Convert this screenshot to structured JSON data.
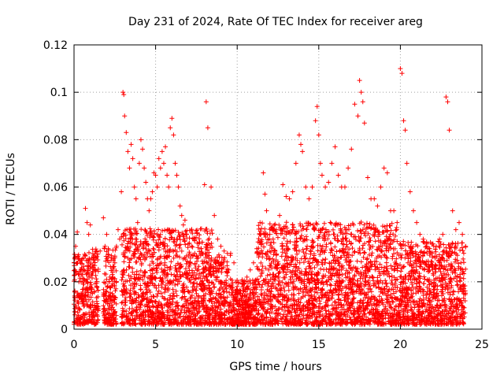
{
  "chart_data": {
    "type": "scatter",
    "title": "Day 231 of 2024, Rate Of TEC Index for receiver areg",
    "xlabel": "GPS time / hours",
    "ylabel": "ROTI / TECUs",
    "xlim": [
      0,
      25
    ],
    "ylim": [
      0,
      0.12
    ],
    "xticks": [
      0,
      5,
      10,
      15,
      20,
      25
    ],
    "yticks": [
      0,
      0.02,
      0.04,
      0.06,
      0.08,
      0.1,
      0.12
    ],
    "xtick_labels": [
      "0",
      "5",
      "10",
      "15",
      "20",
      "25"
    ],
    "ytick_labels": [
      "0",
      "0.02",
      "0.04",
      "0.06",
      "0.08",
      "0.1",
      "0.12"
    ],
    "grid": true,
    "marker": "plus",
    "color": "#ff0000",
    "series": [
      {
        "values_note_free": true,
        "x": [
          0.1,
          0.2,
          0.3,
          0.4,
          0.5,
          0.6,
          0.7,
          0.8,
          0.9,
          1.0,
          1.1,
          1.2,
          1.3,
          1.4,
          1.6,
          1.8,
          1.9,
          2.0,
          2.1,
          2.2,
          2.3,
          2.4,
          2.5,
          2.6,
          2.7,
          2.8,
          2.9,
          3.0,
          3.05,
          3.1,
          3.2,
          3.3,
          3.4,
          3.5,
          3.6,
          3.7,
          3.8,
          3.9,
          4.0,
          4.1,
          4.2,
          4.3,
          4.4,
          4.5,
          4.6,
          4.7,
          4.8,
          4.9,
          5.0,
          5.1,
          5.2,
          5.3,
          5.4,
          5.5,
          5.6,
          5.7,
          5.8,
          5.9,
          6.0,
          6.1,
          6.2,
          6.3,
          6.4,
          6.5,
          6.6,
          6.7,
          6.8,
          6.9,
          7.0,
          7.2,
          7.4,
          7.6,
          7.8,
          8.0,
          8.1,
          8.2,
          8.4,
          8.6,
          8.8,
          9.0,
          9.2,
          9.4,
          9.6,
          9.8,
          10.0,
          10.2,
          10.4,
          10.6,
          10.8,
          11.0,
          11.2,
          11.4,
          11.6,
          11.7,
          11.8,
          12.0,
          12.2,
          12.4,
          12.6,
          12.8,
          13.0,
          13.2,
          13.4,
          13.6,
          13.8,
          13.9,
          14.0,
          14.2,
          14.4,
          14.6,
          14.8,
          14.9,
          15.0,
          15.1,
          15.2,
          15.4,
          15.6,
          15.8,
          16.0,
          16.2,
          16.4,
          16.6,
          16.8,
          17.0,
          17.2,
          17.4,
          17.5,
          17.6,
          17.7,
          17.8,
          18.0,
          18.2,
          18.4,
          18.6,
          18.8,
          19.0,
          19.2,
          19.4,
          19.6,
          19.8,
          20.0,
          20.1,
          20.2,
          20.3,
          20.4,
          20.6,
          20.8,
          21.0,
          21.2,
          21.4,
          21.6,
          21.8,
          22.0,
          22.2,
          22.4,
          22.6,
          22.8,
          22.9,
          23.0,
          23.2,
          23.4,
          23.6,
          23.8,
          24.0
        ],
        "y": [
          0.035,
          0.041,
          0.02,
          0.028,
          0.015,
          0.03,
          0.051,
          0.045,
          0.04,
          0.044,
          0.03,
          0.026,
          0.025,
          0.018,
          0.033,
          0.047,
          0.035,
          0.04,
          0.034,
          0.022,
          0.031,
          0.026,
          0.028,
          0.035,
          0.042,
          0.038,
          0.058,
          0.1,
          0.099,
          0.09,
          0.083,
          0.075,
          0.068,
          0.078,
          0.072,
          0.06,
          0.055,
          0.045,
          0.07,
          0.08,
          0.076,
          0.068,
          0.062,
          0.055,
          0.05,
          0.055,
          0.058,
          0.066,
          0.065,
          0.06,
          0.072,
          0.068,
          0.075,
          0.07,
          0.077,
          0.065,
          0.06,
          0.085,
          0.089,
          0.082,
          0.07,
          0.065,
          0.06,
          0.052,
          0.048,
          0.044,
          0.046,
          0.04,
          0.036,
          0.035,
          0.032,
          0.03,
          0.034,
          0.061,
          0.096,
          0.085,
          0.06,
          0.048,
          0.038,
          0.035,
          0.033,
          0.032,
          0.032,
          0.028,
          0.018,
          0.015,
          0.017,
          0.022,
          0.025,
          0.028,
          0.034,
          0.045,
          0.066,
          0.057,
          0.05,
          0.04,
          0.038,
          0.042,
          0.048,
          0.061,
          0.056,
          0.055,
          0.058,
          0.07,
          0.082,
          0.078,
          0.075,
          0.06,
          0.055,
          0.06,
          0.088,
          0.094,
          0.082,
          0.07,
          0.065,
          0.06,
          0.062,
          0.07,
          0.077,
          0.065,
          0.06,
          0.06,
          0.068,
          0.076,
          0.095,
          0.09,
          0.105,
          0.1,
          0.096,
          0.087,
          0.064,
          0.055,
          0.055,
          0.052,
          0.06,
          0.068,
          0.066,
          0.05,
          0.05,
          0.045,
          0.11,
          0.108,
          0.088,
          0.084,
          0.07,
          0.058,
          0.05,
          0.045,
          0.04,
          0.038,
          0.035,
          0.034,
          0.036,
          0.035,
          0.038,
          0.04,
          0.098,
          0.096,
          0.084,
          0.05,
          0.042,
          0.045,
          0.04,
          0.035
        ]
      }
    ]
  }
}
